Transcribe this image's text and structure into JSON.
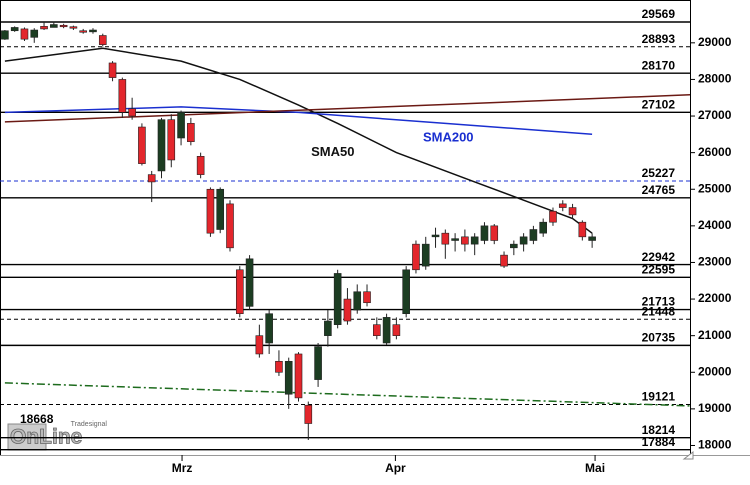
{
  "chart_data": {
    "type": "candlestick",
    "xlim": [
      -0.5,
      70
    ],
    "ylim": [
      17740,
      30170
    ],
    "yticks": [
      {
        "value": 18000,
        "label": "18000"
      },
      {
        "value": 19000,
        "label": "19000"
      },
      {
        "value": 20000,
        "label": "20000"
      },
      {
        "value": 21000,
        "label": "21000"
      },
      {
        "value": 22000,
        "label": "22000"
      },
      {
        "value": 23000,
        "label": "23000"
      },
      {
        "value": 24000,
        "label": "24000"
      },
      {
        "value": 25000,
        "label": "25000"
      },
      {
        "value": 26000,
        "label": "26000"
      },
      {
        "value": 27000,
        "label": "27000"
      },
      {
        "value": 28000,
        "label": "28000"
      },
      {
        "value": 29000,
        "label": "29000"
      }
    ],
    "xticks": [
      {
        "value": 18.1,
        "label": "Mrz"
      },
      {
        "value": 39.9,
        "label": "Apr"
      },
      {
        "value": 60.3,
        "label": "Mai"
      }
    ],
    "up_color": "#1c3d22",
    "down_color": "#e3262c",
    "open": [
      29100,
      29330,
      29380,
      29150,
      29450,
      29420,
      29480,
      29440,
      29330,
      29300,
      29200,
      28450,
      28000,
      27200,
      26700,
      25400,
      25500,
      26900,
      26400,
      26800,
      25900,
      25000,
      23900,
      24600,
      22800,
      21800,
      21000,
      20800,
      20300,
      19400,
      20500,
      19100,
      19800,
      21000,
      21300,
      22000,
      21700,
      22200,
      21300,
      20800,
      21300,
      21600,
      23500,
      22900,
      23700,
      23800,
      23600,
      23700,
      23500,
      23600,
      24000,
      23200,
      23400,
      23500,
      23600,
      23800,
      24400,
      24600,
      24500,
      24100,
      23600
    ],
    "high": [
      29350,
      29450,
      29420,
      29400,
      29550,
      29580,
      29520,
      29470,
      29380,
      29400,
      29250,
      28500,
      28050,
      27500,
      26800,
      25500,
      26950,
      27050,
      27150,
      26950,
      26000,
      25050,
      25050,
      24700,
      22900,
      23200,
      21300,
      21700,
      20600,
      20400,
      20550,
      19200,
      20800,
      21700,
      22800,
      22300,
      22400,
      22400,
      21500,
      21600,
      21500,
      22900,
      23600,
      23700,
      23950,
      23900,
      23800,
      23900,
      23800,
      24100,
      24050,
      23300,
      23600,
      23800,
      24000,
      24200,
      24500,
      24700,
      24600,
      24150,
      23800
    ],
    "low": [
      29080,
      29300,
      29050,
      29000,
      29350,
      29450,
      29400,
      29350,
      29250,
      29250,
      28900,
      27950,
      26950,
      26900,
      25650,
      24650,
      25300,
      25600,
      26200,
      26200,
      25300,
      23700,
      23800,
      23300,
      21500,
      21700,
      20400,
      20500,
      19900,
      19000,
      19200,
      18150,
      19600,
      20700,
      21200,
      21300,
      21600,
      21800,
      20900,
      20750,
      20900,
      21500,
      22700,
      22800,
      23400,
      23100,
      23300,
      23300,
      23200,
      23500,
      23500,
      22850,
      23200,
      23300,
      23500,
      23700,
      24000,
      24400,
      24200,
      23600,
      23400
    ],
    "close": [
      29330,
      29420,
      29100,
      29350,
      29380,
      29500,
      29460,
      29420,
      29300,
      29350,
      28950,
      28050,
      27100,
      27000,
      25700,
      25200,
      26900,
      25800,
      27100,
      26300,
      25400,
      23800,
      25000,
      23400,
      21600,
      23100,
      20500,
      21600,
      20000,
      20300,
      19300,
      18600,
      20700,
      21400,
      22700,
      21400,
      22200,
      21900,
      21000,
      21500,
      21000,
      22800,
      22800,
      23500,
      23750,
      23500,
      23650,
      23500,
      23700,
      24000,
      23600,
      22900,
      23500,
      23700,
      23900,
      24100,
      24100,
      24500,
      24300,
      23700,
      23700
    ],
    "overlays": [
      {
        "name": "SMA50",
        "color": "#111111",
        "dash": "solid",
        "x": [
          0,
          10,
          18,
          24,
          30,
          34,
          40,
          48,
          53,
          58,
          60
        ],
        "values": [
          28500,
          28850,
          28500,
          28000,
          27300,
          26800,
          26000,
          25200,
          24700,
          24200,
          23800
        ]
      },
      {
        "name": "SMA200",
        "color": "#1a2fd0",
        "dash": "solid",
        "x": [
          0,
          18,
          30,
          45,
          60
        ],
        "values": [
          27100,
          27250,
          27100,
          26800,
          26500
        ]
      },
      {
        "color": "#6b1a14",
        "dash": "solid",
        "x": [
          0,
          70
        ],
        "values": [
          26840,
          27580
        ]
      },
      {
        "color": "#1d6b1d",
        "dash": "dashdot",
        "x": [
          0,
          70
        ],
        "values": [
          19710,
          19080
        ]
      }
    ],
    "levels": [
      {
        "value": 29569,
        "line": "solid"
      },
      {
        "value": 28893,
        "line": "dashed"
      },
      {
        "value": 28170,
        "line": "solid"
      },
      {
        "value": 27102,
        "line": "solid"
      },
      {
        "value": 25227,
        "line": "dashed-blue"
      },
      {
        "value": 24765,
        "line": "solid"
      },
      {
        "value": 22942,
        "line": "solid"
      },
      {
        "value": 22595,
        "line": "solid"
      },
      {
        "value": 21713,
        "line": "solid"
      },
      {
        "value": 21448,
        "line": "dashed"
      },
      {
        "value": 20735,
        "line": "solid"
      },
      {
        "value": 19121,
        "line": "dashed"
      },
      {
        "value": 18668,
        "line": "left"
      },
      {
        "value": 18214,
        "line": "solid"
      },
      {
        "value": 17884,
        "line": "solid"
      }
    ],
    "annotations": [
      {
        "text": "SMA50",
        "x": 33.5,
        "y": 26000,
        "color": "#111111"
      },
      {
        "text": "SMA200",
        "x": 45.3,
        "y": 26400,
        "color": "#1a2fd0"
      }
    ],
    "logo": {
      "small": "Tradesignal",
      "big": "OnLine"
    }
  }
}
